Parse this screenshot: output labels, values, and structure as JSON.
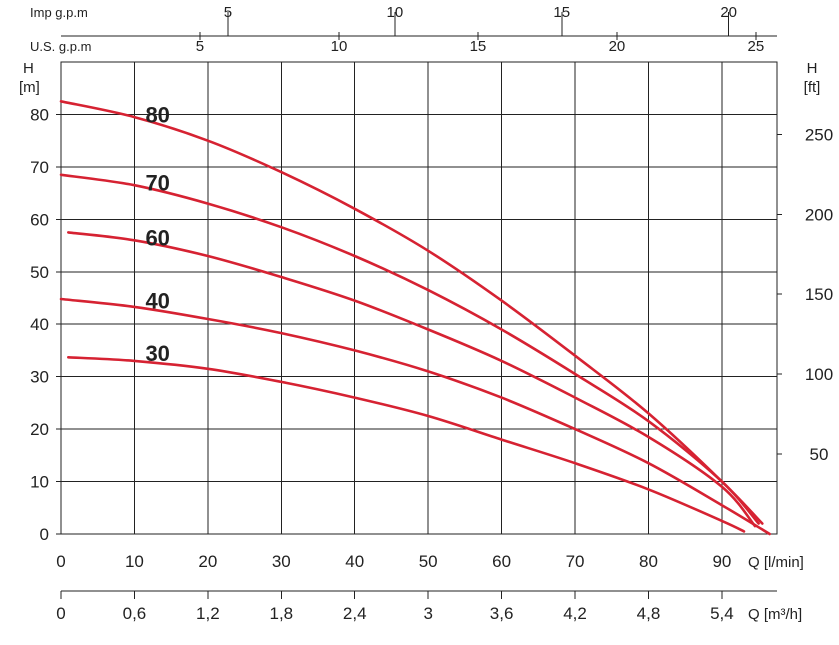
{
  "chart_data": {
    "type": "line",
    "colors": {
      "curve": "#d62232",
      "axis": "#222222"
    },
    "grid": true,
    "y_axis_left": {
      "label_top": "H",
      "label_bottom": "[m]",
      "ticks": [
        "0",
        "10",
        "20",
        "30",
        "40",
        "50",
        "60",
        "70",
        "80"
      ],
      "tick_values": [
        0,
        10,
        20,
        30,
        40,
        50,
        60,
        70,
        80
      ],
      "ylim": [
        0,
        90
      ]
    },
    "y_axis_right": {
      "label_top": "H",
      "label_bottom": "[ft]",
      "ticks": [
        "50",
        "100",
        "150",
        "200",
        "250"
      ],
      "tick_values": [
        50,
        100,
        150,
        200,
        250
      ],
      "unit_per_meter": 3.28084
    },
    "x_axis_lpm": {
      "label": "Q [l/min]",
      "ticks": [
        "0",
        "10",
        "20",
        "30",
        "40",
        "50",
        "60",
        "70",
        "80",
        "90"
      ],
      "tick_values": [
        0,
        10,
        20,
        30,
        40,
        50,
        60,
        70,
        80,
        90
      ],
      "xlim": [
        0,
        97.5
      ]
    },
    "x_axis_m3h": {
      "label": "Q [m³/h]",
      "ticks": [
        "0",
        "0,6",
        "1,2",
        "1,8",
        "2,4",
        "3",
        "3,6",
        "4,2",
        "4,8",
        "5,4"
      ],
      "tick_values": [
        0,
        0.6,
        1.2,
        1.8,
        2.4,
        3.0,
        3.6,
        4.2,
        4.8,
        5.4
      ]
    },
    "x_axis_us_gpm": {
      "label": "U.S. g.p.m",
      "ticks": [
        "5",
        "10",
        "15",
        "20",
        "25"
      ],
      "tick_values": [
        5,
        10,
        15,
        20,
        25
      ],
      "lpm_per_unit": 3.785
    },
    "x_axis_imp_gpm": {
      "label": "Imp g.p.m",
      "ticks": [
        "5",
        "10",
        "15",
        "20"
      ],
      "tick_values": [
        5,
        10,
        15,
        20
      ],
      "lpm_per_unit": 4.546
    },
    "series": [
      {
        "name": "80",
        "x": [
          0,
          10,
          20,
          30,
          40,
          50,
          60,
          70,
          80,
          90,
          95.5
        ],
        "y": [
          82.5,
          79.5,
          75,
          69,
          62,
          54,
          44.5,
          34,
          23,
          10,
          2
        ]
      },
      {
        "name": "70",
        "x": [
          0,
          10,
          20,
          30,
          40,
          50,
          60,
          70,
          80,
          90,
          95
        ],
        "y": [
          68.5,
          66.5,
          63,
          58.5,
          53,
          46.5,
          39,
          30.5,
          21.5,
          10,
          2
        ]
      },
      {
        "name": "60",
        "x": [
          1,
          10,
          20,
          30,
          40,
          50,
          60,
          70,
          80,
          90,
          94.5
        ],
        "y": [
          57.5,
          56,
          53,
          49,
          44.5,
          39,
          33,
          26,
          18.5,
          9,
          1.5
        ]
      },
      {
        "name": "40",
        "x": [
          0,
          10,
          20,
          30,
          40,
          50,
          60,
          70,
          80,
          90,
          96.5
        ],
        "y": [
          44.8,
          43.3,
          41,
          38.3,
          35,
          31,
          26,
          20,
          13.5,
          5.5,
          0
        ]
      },
      {
        "name": "30",
        "x": [
          1,
          10,
          20,
          30,
          40,
          50,
          60,
          70,
          80,
          90,
          93
        ],
        "y": [
          33.7,
          33,
          31.5,
          29,
          26,
          22.5,
          18,
          13.5,
          8.5,
          2.5,
          0.5
        ]
      }
    ],
    "curve_labels": [
      {
        "text": "80",
        "x": 11.5,
        "y": 80
      },
      {
        "text": "70",
        "x": 11.5,
        "y": 67
      },
      {
        "text": "60",
        "x": 11.5,
        "y": 56.5
      },
      {
        "text": "40",
        "x": 11.5,
        "y": 44.5
      },
      {
        "text": "30",
        "x": 11.5,
        "y": 34.5
      }
    ]
  }
}
